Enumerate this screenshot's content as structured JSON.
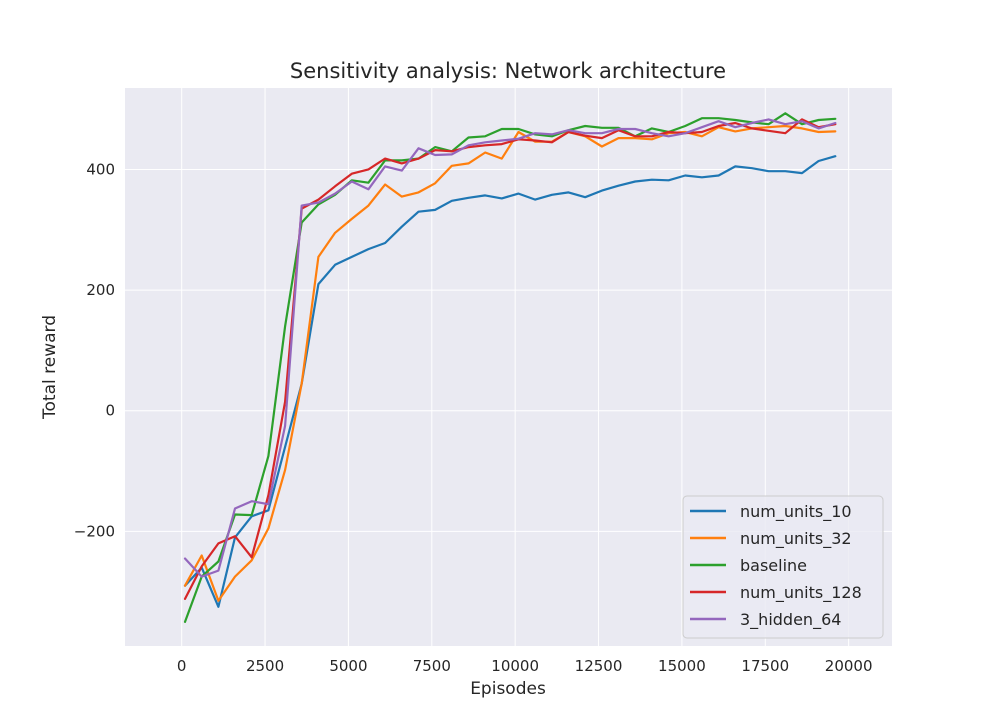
{
  "chart_data": {
    "type": "line",
    "title": "Sensitivity analysis: Network architecture",
    "xlabel": "Episodes",
    "ylabel": "Total reward",
    "xlim": [
      -1700,
      21300
    ],
    "ylim": [
      -390,
      535
    ],
    "xticks": [
      0,
      2500,
      5000,
      7500,
      10000,
      12500,
      15000,
      17500,
      20000
    ],
    "xtick_labels": [
      "0",
      "2500",
      "5000",
      "7500",
      "10000",
      "12500",
      "15000",
      "17500",
      "20000"
    ],
    "yticks": [
      -200,
      0,
      200,
      400
    ],
    "ytick_labels": [
      "−200",
      "0",
      "200",
      "400"
    ],
    "grid": true,
    "legend_position": "lower-right",
    "x": [
      100,
      600,
      1100,
      1600,
      2100,
      2600,
      3100,
      3600,
      4100,
      4600,
      5100,
      5600,
      6100,
      6600,
      7100,
      7600,
      8100,
      8600,
      9100,
      9600,
      10100,
      10600,
      11100,
      11600,
      12100,
      12600,
      13100,
      13600,
      14100,
      14600,
      15100,
      15600,
      16100,
      16600,
      17100,
      17600,
      18100,
      18600,
      19100,
      19600
    ],
    "series": [
      {
        "name": "num_units_10",
        "color": "#1f77b4",
        "values": [
          -290,
          -260,
          -325,
          -210,
          -175,
          -165,
          -60,
          45,
          210,
          242,
          255,
          268,
          278,
          305,
          330,
          333,
          348,
          353,
          357,
          352,
          360,
          350,
          358,
          362,
          354,
          365,
          373,
          380,
          383,
          382,
          390,
          387,
          390,
          405,
          402,
          397,
          397,
          394,
          414,
          422
        ]
      },
      {
        "name": "num_units_32",
        "color": "#ff7f0e",
        "values": [
          -290,
          -240,
          -315,
          -275,
          -248,
          -195,
          -98,
          45,
          255,
          295,
          318,
          340,
          375,
          355,
          362,
          377,
          406,
          410,
          428,
          418,
          462,
          446,
          446,
          462,
          455,
          438,
          452,
          452,
          450,
          460,
          462,
          455,
          470,
          463,
          468,
          470,
          472,
          468,
          462,
          463
        ]
      },
      {
        "name": "baseline",
        "color": "#2ca02c",
        "values": [
          -350,
          -275,
          -250,
          -172,
          -173,
          -75,
          140,
          312,
          342,
          358,
          382,
          378,
          415,
          415,
          418,
          437,
          430,
          453,
          455,
          467,
          467,
          458,
          455,
          465,
          472,
          469,
          469,
          455,
          468,
          462,
          472,
          485,
          485,
          482,
          478,
          475,
          493,
          475,
          482,
          484
        ]
      },
      {
        "name": "num_units_128",
        "color": "#d62728",
        "values": [
          -312,
          -258,
          -220,
          -208,
          -243,
          -140,
          15,
          335,
          350,
          372,
          393,
          400,
          418,
          410,
          418,
          432,
          430,
          437,
          440,
          442,
          450,
          448,
          445,
          462,
          456,
          452,
          465,
          455,
          455,
          462,
          460,
          462,
          472,
          477,
          468,
          464,
          460,
          483,
          470,
          475
        ]
      },
      {
        "name": "3_hidden_64",
        "color": "#9467bd",
        "values": [
          -245,
          -275,
          -265,
          -162,
          -150,
          -155,
          -25,
          340,
          345,
          360,
          380,
          367,
          405,
          398,
          435,
          424,
          425,
          440,
          445,
          448,
          451,
          460,
          458,
          465,
          460,
          460,
          467,
          467,
          460,
          455,
          460,
          470,
          480,
          470,
          477,
          483,
          475,
          480,
          468,
          477
        ]
      }
    ]
  }
}
